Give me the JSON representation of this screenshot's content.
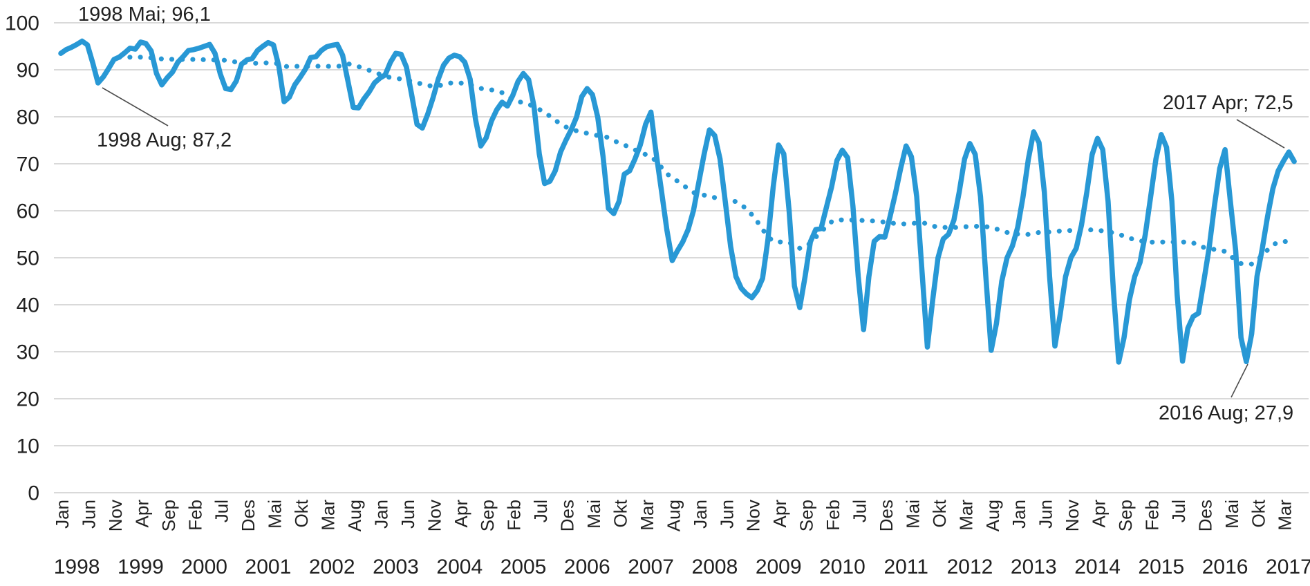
{
  "chart_data": {
    "type": "line",
    "title": "",
    "xlabel": "",
    "ylabel": "",
    "ylim": [
      0,
      100
    ],
    "yticks": [
      0,
      10,
      20,
      30,
      40,
      50,
      60,
      70,
      80,
      90,
      100
    ],
    "grid": "horizontal",
    "legend_position": "none",
    "x_axis": {
      "start_year": 1998,
      "start_month": "Jan",
      "end_year": 2017,
      "end_month": "Mai",
      "month_names": [
        "Jan",
        "Feb",
        "Mar",
        "Apr",
        "Mai",
        "Jun",
        "Jul",
        "Aug",
        "Sep",
        "Okt",
        "Nov",
        "Des"
      ],
      "month_tick_step": 5,
      "year_labels": [
        1998,
        1999,
        2000,
        2001,
        2002,
        2003,
        2004,
        2005,
        2006,
        2007,
        2008,
        2009,
        2010,
        2011,
        2012,
        2013,
        2014,
        2015,
        2016,
        2017
      ]
    },
    "series": [
      {
        "name": "monthly-values",
        "style": "solid",
        "start": "1998 Jan",
        "values": [
          93.5,
          94.3,
          94.8,
          95.4,
          96.1,
          95.3,
          91.5,
          87.2,
          88.5,
          90.3,
          92.2,
          92.7,
          93.6,
          94.6,
          94.4,
          95.9,
          95.6,
          94.0,
          89.2,
          86.8,
          88.3,
          89.5,
          91.6,
          92.8,
          94.1,
          94.3,
          94.6,
          95.0,
          95.4,
          93.5,
          89.1,
          86.0,
          85.8,
          87.6,
          91.2,
          92.1,
          92.4,
          94.1,
          95.0,
          95.8,
          95.3,
          90.8,
          83.2,
          84.2,
          86.8,
          88.4,
          90.1,
          92.6,
          92.8,
          94.1,
          94.9,
          95.2,
          95.4,
          93.1,
          87.6,
          82.0,
          81.9,
          83.8,
          85.3,
          87.2,
          88.2,
          88.9,
          91.6,
          93.5,
          93.3,
          90.6,
          84.7,
          78.4,
          77.6,
          80.5,
          84.0,
          88.0,
          91.0,
          92.5,
          93.1,
          92.8,
          91.6,
          88.0,
          79.5,
          73.8,
          75.5,
          79.1,
          81.5,
          83.1,
          82.3,
          84.5,
          87.5,
          89.2,
          87.9,
          82.3,
          72.1,
          65.8,
          66.3,
          68.5,
          72.5,
          75.0,
          77.2,
          79.9,
          84.3,
          86.0,
          84.7,
          79.9,
          71.5,
          60.5,
          59.4,
          62.0,
          67.8,
          68.5,
          71.0,
          74.0,
          78.4,
          81.0,
          72.1,
          64.1,
          55.9,
          49.4,
          51.5,
          53.4,
          56.0,
          60.0,
          66.0,
          72.0,
          77.2,
          76.0,
          71.0,
          61.8,
          52.4,
          46.0,
          43.5,
          42.3,
          41.5,
          43.0,
          45.6,
          53.8,
          65.1,
          74.0,
          72.1,
          60.0,
          44.0,
          39.4,
          46.0,
          53.4,
          56.0,
          56.2,
          60.7,
          65.1,
          70.7,
          72.9,
          71.3,
          61.0,
          46.0,
          34.7,
          46.0,
          53.5,
          54.5,
          54.4,
          58.8,
          63.7,
          69.1,
          73.8,
          71.5,
          63.0,
          47.0,
          31.0,
          41.0,
          50.0,
          54.0,
          55.0,
          58.0,
          64.0,
          71.0,
          74.3,
          72.0,
          63.0,
          46.0,
          30.3,
          36.0,
          45.0,
          50.0,
          52.5,
          56.5,
          63.0,
          71.0,
          76.8,
          74.5,
          64.0,
          46.0,
          31.2,
          38.0,
          46.0,
          50.0,
          52.0,
          57.0,
          64.0,
          72.0,
          75.4,
          73.0,
          62.0,
          43.0,
          27.8,
          33.0,
          41.0,
          46.0,
          49.0,
          55.0,
          63.0,
          71.0,
          76.2,
          73.5,
          62.0,
          42.0,
          28.0,
          35.0,
          37.5,
          38.2,
          45.0,
          52.0,
          61.0,
          69.0,
          73.0,
          62.0,
          51.5,
          33.0,
          27.9,
          33.8,
          46.0,
          51.9,
          58.8,
          64.7,
          68.5,
          70.6,
          72.5,
          70.5
        ]
      },
      {
        "name": "trend-dotted",
        "style": "dotted",
        "derivation": "trailing-12-month-average-of-monthly-values"
      }
    ],
    "annotations": [
      {
        "text": "1998 Mai; 96,1",
        "year": 1998,
        "month": "Mai",
        "value": 96.1,
        "leader": false
      },
      {
        "text": "1998 Aug; 87,2",
        "year": 1998,
        "month": "Aug",
        "value": 87.2,
        "leader": true
      },
      {
        "text": "2017 Apr; 72,5",
        "year": 2017,
        "month": "Apr",
        "value": 72.5,
        "leader": true
      },
      {
        "text": "2016 Aug; 27,9",
        "year": 2016,
        "month": "Aug",
        "value": 27.9,
        "leader": true
      }
    ],
    "colors": {
      "line": "#2898d5",
      "trend": "#2898d5",
      "gridline": "#d9d9d9",
      "text": "#212121",
      "leader_line": "#4d4d4d",
      "background": "#ffffff"
    }
  }
}
